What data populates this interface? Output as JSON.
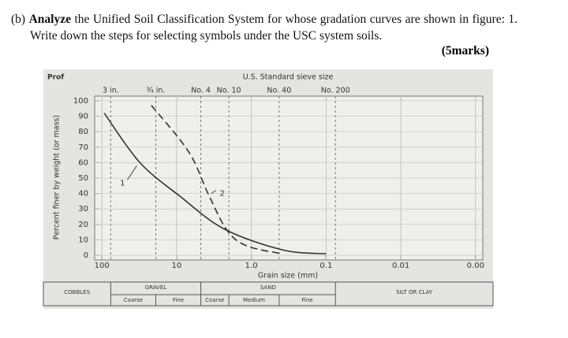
{
  "question": {
    "label": "(b)",
    "verb": "Analyze",
    "text": "the Unified Soil Classification System for whose gradation curves are shown in figure: 1. Write down the steps for selecting symbols under the USC system soils.",
    "marks": "(5marks)"
  },
  "chart_data": {
    "type": "line",
    "corner_text": "Prof",
    "title": "U.S. Standard sieve size",
    "x_label": "Grain size (mm)",
    "y_label": "Percent finer by weight (or mass)",
    "log_x": true,
    "xlim": [
      125,
      0.0008
    ],
    "ylim": [
      -3,
      103
    ],
    "xticks": [
      100,
      10,
      {
        "value": 1,
        "label": "1.0"
      },
      0.1,
      0.01,
      {
        "value": 0.001,
        "label": "0.00"
      }
    ],
    "yticks": [
      0,
      10,
      20,
      30,
      40,
      50,
      60,
      70,
      80,
      90,
      100
    ],
    "grid": true,
    "sieves": [
      {
        "label": "3 in.",
        "size": 76.2
      },
      {
        "label": "¾ in.",
        "size": 19
      },
      {
        "label": "No. 4",
        "size": 4.75
      },
      {
        "label": "No. 10",
        "size": 2
      },
      {
        "label": "No. 40",
        "size": 0.425
      },
      {
        "label": "No. 200",
        "size": 0.075
      }
    ],
    "series": [
      {
        "name": "1",
        "color": "#333333",
        "dashed": false,
        "x": [
          93,
          31,
          8.9,
          2.3,
          0.38,
          0.1
        ],
        "values": [
          92,
          60,
          38,
          17,
          3.5,
          1
        ]
      },
      {
        "name": "2",
        "color": "#333333",
        "dashed": true,
        "x": [
          21.8,
          6.9,
          3.8,
          2.1,
          1.13,
          0.38
        ],
        "values": [
          97,
          67,
          40,
          16,
          6,
          1
        ]
      }
    ],
    "classes": [
      {
        "name": "COBBLES"
      },
      {
        "name": "GRAVEL",
        "parts": [
          "Coarse",
          "Fine"
        ]
      },
      {
        "name": "SAND",
        "parts": [
          "Coarse",
          "Medium",
          "Fine"
        ]
      },
      {
        "name": "SILT OR CLAY"
      }
    ]
  }
}
